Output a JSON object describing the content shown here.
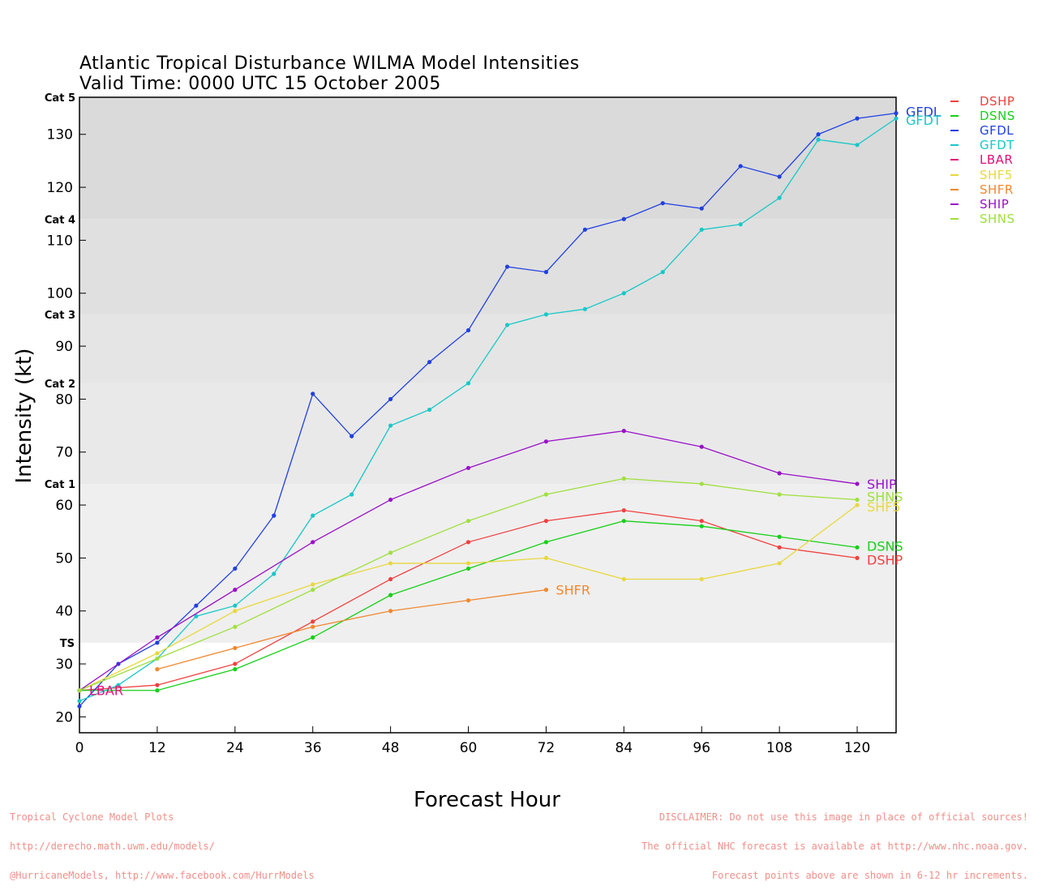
{
  "page": {
    "title_line1": "Atlantic Tropical Disturbance WILMA Model Intensities",
    "title_line2": "Valid Time: 0000 UTC 15 October 2005",
    "footer_left": [
      "Tropical Cyclone Model Plots",
      "http://derecho.math.uwm.edu/models/",
      "@HurricaneModels, http://www.facebook.com/HurrModels"
    ],
    "footer_right": [
      "DISCLAIMER: Do not use this image in place of official sources!",
      "The official NHC forecast is available at http://www.nhc.noaa.gov.",
      "Forecast points above are shown in 6-12 hr increments."
    ]
  },
  "chart_data": {
    "type": "line",
    "title": "Atlantic Tropical Disturbance WILMA Model Intensities",
    "subtitle": "Valid Time: 0000 UTC 15 October 2005",
    "xlabel": "Forecast Hour",
    "ylabel": "Intensity (kt)",
    "xlim": [
      0,
      126
    ],
    "ylim": [
      17,
      137
    ],
    "xticks": [
      0,
      12,
      24,
      36,
      48,
      60,
      72,
      84,
      96,
      108,
      120
    ],
    "yticks": [
      20,
      30,
      40,
      50,
      60,
      70,
      80,
      90,
      100,
      110,
      120,
      130
    ],
    "grid": false,
    "legend_position": "right",
    "category_bands": [
      {
        "label": "TS",
        "from": 34,
        "to": 64,
        "color": "#efefef"
      },
      {
        "label": "Cat 1",
        "from": 64,
        "to": 83,
        "color": "#e9e9e9"
      },
      {
        "label": "Cat 2",
        "from": 83,
        "to": 96,
        "color": "#e5e5e5"
      },
      {
        "label": "Cat 3",
        "from": 96,
        "to": 114,
        "color": "#e0e0e0"
      },
      {
        "label": "Cat 4",
        "from": 114,
        "to": 137,
        "color": "#dadada"
      },
      {
        "label": "Cat 5",
        "from": 137,
        "to": 137,
        "color": "#d4d4d4"
      }
    ],
    "series": [
      {
        "name": "DSHP",
        "color": "#f04040",
        "x": [
          0,
          12,
          24,
          36,
          48,
          60,
          72,
          84,
          96,
          108,
          120
        ],
        "y": [
          25,
          26,
          30,
          38,
          46,
          53,
          57,
          59,
          57,
          52,
          50
        ]
      },
      {
        "name": "DSNS",
        "color": "#18d018",
        "x": [
          0,
          12,
          24,
          36,
          48,
          60,
          72,
          84,
          96,
          108,
          120
        ],
        "y": [
          25,
          25,
          29,
          35,
          43,
          48,
          53,
          57,
          56,
          54,
          52
        ]
      },
      {
        "name": "GFDL",
        "color": "#2040e0",
        "x": [
          0,
          6,
          12,
          18,
          24,
          30,
          36,
          42,
          48,
          54,
          60,
          66,
          72,
          78,
          84,
          90,
          96,
          102,
          108,
          114,
          120,
          126
        ],
        "y": [
          22,
          30,
          34,
          41,
          48,
          58,
          81,
          73,
          80,
          87,
          93,
          105,
          104,
          112,
          114,
          117,
          116,
          124,
          122,
          130,
          133,
          134
        ]
      },
      {
        "name": "GFDT",
        "color": "#18c8c8",
        "x": [
          0,
          6,
          12,
          18,
          24,
          30,
          36,
          42,
          48,
          54,
          60,
          66,
          72,
          78,
          84,
          90,
          96,
          102,
          108,
          114,
          120,
          126
        ],
        "y": [
          23,
          26,
          31,
          39,
          41,
          47,
          58,
          62,
          75,
          78,
          83,
          94,
          96,
          97,
          100,
          104,
          112,
          113,
          118,
          129,
          128,
          133
        ]
      },
      {
        "name": "LBAR",
        "color": "#e0107a",
        "x": [
          0
        ],
        "y": [
          25
        ]
      },
      {
        "name": "SHF5",
        "color": "#e8d840",
        "x": [
          0,
          12,
          24,
          36,
          48,
          60,
          72,
          84,
          96,
          108,
          120
        ],
        "y": [
          25,
          32,
          40,
          45,
          49,
          49,
          50,
          46,
          46,
          49,
          60
        ]
      },
      {
        "name": "SHFR",
        "color": "#f08830",
        "x": [
          12,
          24,
          36,
          48,
          60,
          72
        ],
        "y": [
          29,
          33,
          37,
          40,
          42,
          44
        ]
      },
      {
        "name": "SHIP",
        "color": "#9a10c8",
        "x": [
          0,
          12,
          24,
          36,
          48,
          60,
          72,
          84,
          96,
          108,
          120
        ],
        "y": [
          25,
          35,
          44,
          53,
          61,
          67,
          72,
          74,
          71,
          66,
          64
        ]
      },
      {
        "name": "SHNS",
        "color": "#a0e040",
        "x": [
          0,
          12,
          24,
          36,
          48,
          60,
          72,
          84,
          96,
          108,
          120
        ],
        "y": [
          25,
          31,
          37,
          44,
          51,
          57,
          62,
          65,
          64,
          62,
          61
        ]
      }
    ]
  }
}
